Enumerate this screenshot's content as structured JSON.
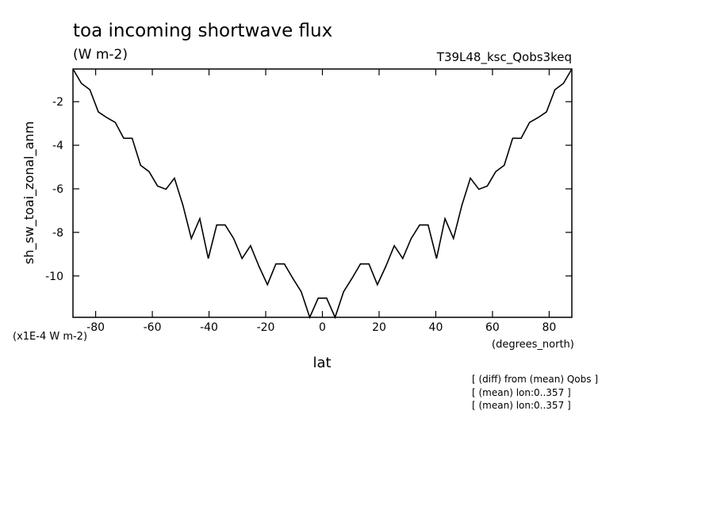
{
  "chart_data": {
    "type": "line",
    "title": "toa incoming shortwave flux",
    "subtitle": "(W m-2)",
    "run_label": "T39L48_ksc_Qobs3keq",
    "y_label": "sh_sw_toai_zonal_anm",
    "y_unit": "(x1E-4 W m-2)",
    "x_label": "lat",
    "x_unit": "(degrees_north)",
    "notes": [
      "[ (diff) from (mean) Qobs ]",
      "[ (mean) lon:0..357 ]",
      "[ (mean) lon:0..357 ]"
    ],
    "xlim": [
      -88,
      88
    ],
    "xticks": [
      -80,
      -60,
      -40,
      -20,
      0,
      20,
      40,
      60,
      80
    ],
    "ylim": [
      -11.9,
      -0.5
    ],
    "yticks": [
      -10,
      -8,
      -6,
      -4,
      -2
    ],
    "color": "#000000",
    "x": [
      -88,
      -85.02,
      -82.03,
      -79.05,
      -76.07,
      -73.08,
      -70.1,
      -67.12,
      -64.14,
      -61.15,
      -58.17,
      -55.19,
      -52.2,
      -49.22,
      -46.24,
      -43.25,
      -40.27,
      -37.29,
      -34.31,
      -31.32,
      -28.34,
      -25.36,
      -22.37,
      -19.39,
      -16.41,
      -13.42,
      -10.44,
      -7.46,
      -4.47,
      -1.49,
      1.49,
      4.47,
      7.46,
      10.44,
      13.42,
      16.41,
      19.39,
      22.37,
      25.36,
      28.34,
      31.32,
      34.31,
      37.29,
      40.27,
      43.25,
      46.24,
      49.22,
      52.2,
      55.19,
      58.17,
      61.15,
      64.14,
      67.12,
      70.1,
      73.08,
      76.07,
      79.05,
      82.03,
      85.02,
      88
    ],
    "values": [
      -0.5,
      -1.16,
      -1.45,
      -2.47,
      -2.73,
      -2.95,
      -3.68,
      -3.68,
      -4.92,
      -5.21,
      -5.87,
      -6.02,
      -5.51,
      -6.75,
      -8.28,
      -7.37,
      -9.2,
      -7.66,
      -7.66,
      -8.28,
      -9.2,
      -8.61,
      -9.56,
      -10.4,
      -9.45,
      -9.45,
      -10.11,
      -10.73,
      -11.9,
      -11.02,
      -11.02,
      -11.9,
      -10.73,
      -10.11,
      -9.45,
      -9.45,
      -10.4,
      -9.56,
      -8.61,
      -9.2,
      -8.28,
      -7.66,
      -7.66,
      -9.2,
      -7.37,
      -8.28,
      -6.75,
      -5.51,
      -6.02,
      -5.87,
      -5.21,
      -4.92,
      -3.68,
      -3.68,
      -2.95,
      -2.73,
      -2.47,
      -1.45,
      -1.16,
      -0.5
    ]
  }
}
